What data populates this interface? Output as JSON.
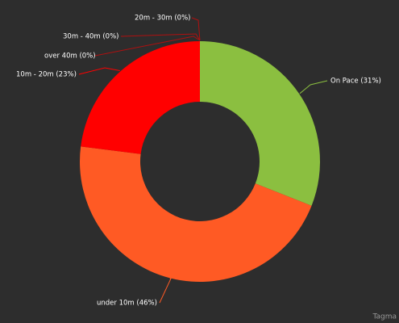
{
  "chart_data": {
    "type": "donut",
    "values": [
      31,
      46,
      23,
      0,
      0,
      0
    ],
    "value_labels": [
      "On Pace (31%)",
      "under 10m (46%)",
      "10m - 20m (23%)",
      "over 40m (0%)",
      "30m - 40m (0%)",
      "20m - 30m (0%)"
    ],
    "colors": [
      "#8bbf40",
      "#ff5a24",
      "#ff0000",
      "#b01010",
      "#b01010",
      "#b01010"
    ],
    "credit": "Tagma"
  }
}
